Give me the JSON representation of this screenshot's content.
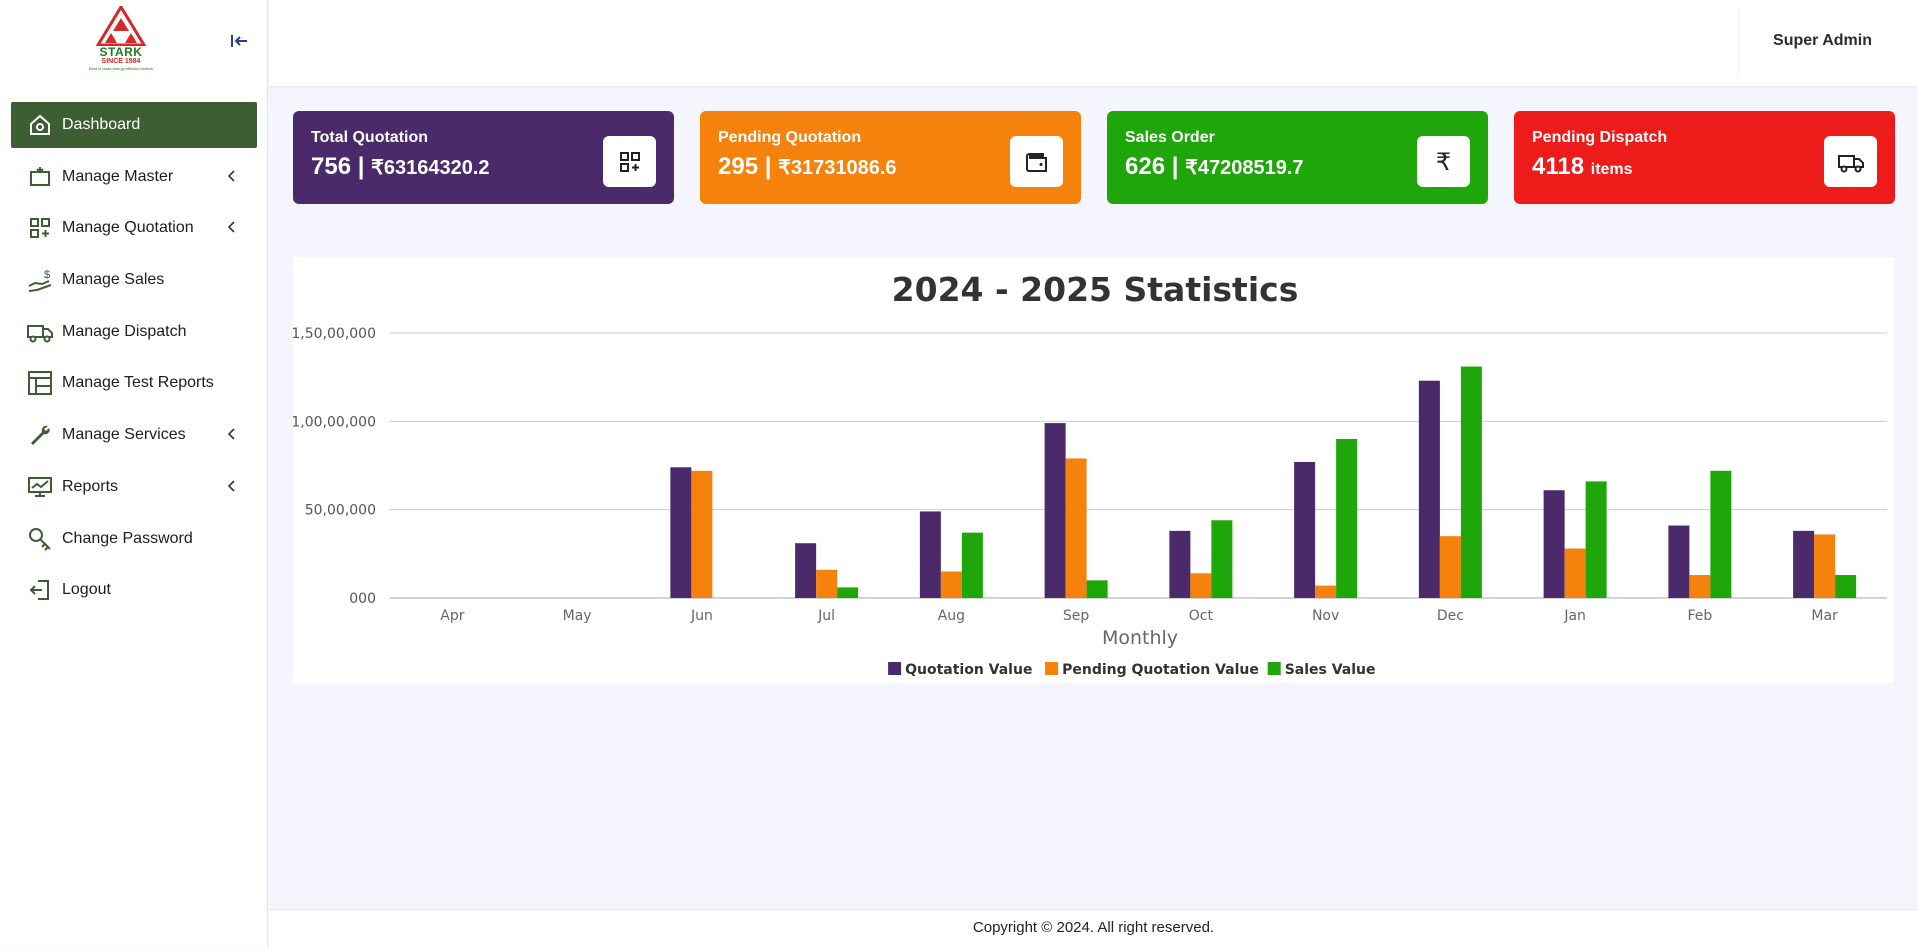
{
  "brand": {
    "name": "STARK",
    "since": "SINCE 1984",
    "tagline": "Best in class energy efficient motors"
  },
  "sidebar": {
    "items": [
      {
        "label": "Dashboard",
        "icon": "home-icon",
        "active": true,
        "chevron": false
      },
      {
        "label": "Manage Master",
        "icon": "master-icon",
        "active": false,
        "chevron": true
      },
      {
        "label": "Manage Quotation",
        "icon": "grid-plus-icon",
        "active": false,
        "chevron": true
      },
      {
        "label": "Manage Sales",
        "icon": "hand-dollar-icon",
        "active": false,
        "chevron": false
      },
      {
        "label": "Manage Dispatch",
        "icon": "truck-icon",
        "active": false,
        "chevron": false
      },
      {
        "label": "Manage Test Reports",
        "icon": "table-icon",
        "active": false,
        "chevron": false
      },
      {
        "label": "Manage Services",
        "icon": "wrench-icon",
        "active": false,
        "chevron": true
      },
      {
        "label": "Reports",
        "icon": "monitor-chart-icon",
        "active": false,
        "chevron": true
      },
      {
        "label": "Change Password",
        "icon": "key-search-icon",
        "active": false,
        "chevron": false
      },
      {
        "label": "Logout",
        "icon": "logout-icon",
        "active": false,
        "chevron": false
      }
    ]
  },
  "header": {
    "user": "Super Admin"
  },
  "cards": [
    {
      "title": "Total Quotation",
      "count": "756",
      "sep": " | ",
      "amount": "₹63164320.2",
      "color": "#4a2a6b",
      "icon": "grid-plus-icon"
    },
    {
      "title": "Pending Quotation",
      "count": "295",
      "sep": " | ",
      "amount": "₹31731086.6",
      "color": "#f5820d",
      "icon": "wallet-icon"
    },
    {
      "title": "Sales Order",
      "count": "626",
      "sep": " | ",
      "amount": "₹47208519.7",
      "color": "#1fa60a",
      "icon": "rupee-icon"
    },
    {
      "title": "Pending Dispatch",
      "count": "4118",
      "sep": " ",
      "amount": "items",
      "color": "#ee1b1b",
      "icon": "truck-icon"
    }
  ],
  "chart_data": {
    "type": "bar",
    "title": "2024 - 2025 Statistics",
    "xlabel": "Monthly",
    "ylabel": "",
    "ylim": [
      0,
      15000000
    ],
    "yticks": [
      {
        "value": 0,
        "label": "000"
      },
      {
        "value": 5000000,
        "label": "50,00,000"
      },
      {
        "value": 10000000,
        "label": "1,00,00,000"
      },
      {
        "value": 15000000,
        "label": "1,50,00,000"
      }
    ],
    "categories": [
      "Apr",
      "May",
      "Jun",
      "Jul",
      "Aug",
      "Sep",
      "Oct",
      "Nov",
      "Dec",
      "Jan",
      "Feb",
      "Mar"
    ],
    "series": [
      {
        "name": "Quotation Value",
        "color": "#4a2a6b",
        "values": [
          0,
          0,
          7400000,
          3100000,
          4900000,
          9900000,
          3800000,
          7700000,
          12300000,
          6100000,
          4100000,
          3800000
        ]
      },
      {
        "name": "Pending Quotation Value",
        "color": "#f5820d",
        "values": [
          0,
          0,
          7200000,
          1600000,
          1500000,
          7900000,
          1400000,
          700000,
          3500000,
          2800000,
          1300000,
          3600000
        ]
      },
      {
        "name": "Sales Value",
        "color": "#1fa60a",
        "values": [
          0,
          0,
          0,
          600000,
          3700000,
          1000000,
          4400000,
          9000000,
          13100000,
          6600000,
          7200000,
          1300000
        ]
      }
    ],
    "grid": true,
    "legend": "bottom"
  },
  "footer": {
    "text": "Copyright © 2024. All right reserved."
  }
}
